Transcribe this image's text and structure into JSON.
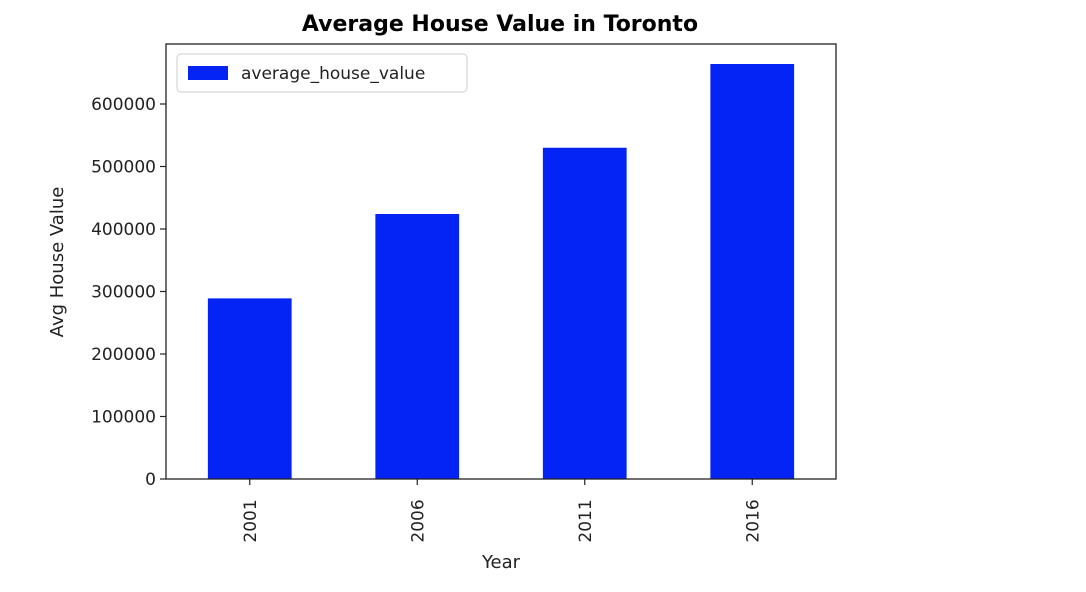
{
  "chart_data": {
    "type": "bar",
    "title": "Average House Value in Toronto",
    "xlabel": "Year",
    "ylabel": "Avg House Value",
    "categories": [
      "2001",
      "2006",
      "2011",
      "2016"
    ],
    "series": [
      {
        "name": "average_house_value",
        "values": [
          289000,
          424000,
          530000,
          664000
        ],
        "color": "#0324f5"
      }
    ],
    "ylim": [
      0,
      696000
    ],
    "yticks": [
      0,
      100000,
      200000,
      300000,
      400000,
      500000,
      600000
    ],
    "grid": false,
    "legend_position": "upper-left"
  }
}
